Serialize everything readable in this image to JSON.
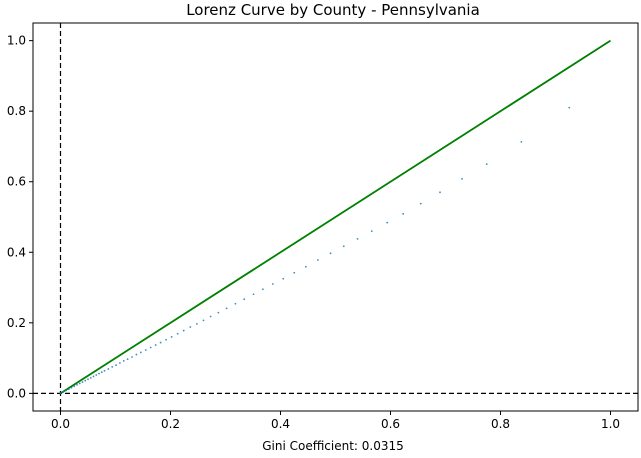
{
  "chart_data": {
    "type": "scatter",
    "title": "Lorenz Curve by County - Pennsylvania",
    "xlabel": "Gini Coefficient: 0.0315",
    "ylabel": "",
    "xlim": [
      -0.05,
      1.05
    ],
    "ylim": [
      -0.05,
      1.05
    ],
    "xticks": [
      0.0,
      0.2,
      0.4,
      0.6,
      0.8,
      1.0
    ],
    "yticks": [
      0.0,
      0.2,
      0.4,
      0.6,
      0.8,
      1.0
    ],
    "xtick_labels": [
      "0.0",
      "0.2",
      "0.4",
      "0.6",
      "0.8",
      "1.0"
    ],
    "ytick_labels": [
      "0.0",
      "0.2",
      "0.4",
      "0.6",
      "0.8",
      "1.0"
    ],
    "grid": false,
    "colors": {
      "points": "#1f77b4",
      "equality_line": "#008000",
      "reference_lines": "#000000"
    },
    "equality_line": {
      "x": [
        0,
        1
      ],
      "y": [
        0,
        1
      ]
    },
    "reference_lines": {
      "horizontal_y": 0,
      "vertical_x": 0
    },
    "points": {
      "x": [
        0.0,
        0.005,
        0.01,
        0.015,
        0.02,
        0.025,
        0.03,
        0.035,
        0.04,
        0.045,
        0.05,
        0.055,
        0.06,
        0.065,
        0.07,
        0.075,
        0.08,
        0.087,
        0.094,
        0.101,
        0.108,
        0.115,
        0.122,
        0.13,
        0.138,
        0.146,
        0.155,
        0.164,
        0.173,
        0.182,
        0.192,
        0.202,
        0.213,
        0.224,
        0.236,
        0.248,
        0.26,
        0.273,
        0.287,
        0.302,
        0.318,
        0.334,
        0.351,
        0.368,
        0.386,
        0.405,
        0.425,
        0.446,
        0.468,
        0.491,
        0.515,
        0.54,
        0.566,
        0.594,
        0.623,
        0.655,
        0.69,
        0.73,
        0.775,
        0.838,
        0.925
      ],
      "y": [
        0.0,
        0.004,
        0.008,
        0.012,
        0.016,
        0.02,
        0.024,
        0.028,
        0.032,
        0.036,
        0.04,
        0.044,
        0.048,
        0.052,
        0.056,
        0.06,
        0.064,
        0.069,
        0.075,
        0.08,
        0.086,
        0.092,
        0.097,
        0.103,
        0.11,
        0.116,
        0.123,
        0.13,
        0.137,
        0.144,
        0.152,
        0.16,
        0.169,
        0.178,
        0.188,
        0.197,
        0.207,
        0.218,
        0.229,
        0.241,
        0.254,
        0.267,
        0.281,
        0.295,
        0.31,
        0.325,
        0.342,
        0.359,
        0.378,
        0.397,
        0.417,
        0.438,
        0.46,
        0.484,
        0.509,
        0.538,
        0.57,
        0.608,
        0.65,
        0.713,
        0.81
      ]
    }
  }
}
